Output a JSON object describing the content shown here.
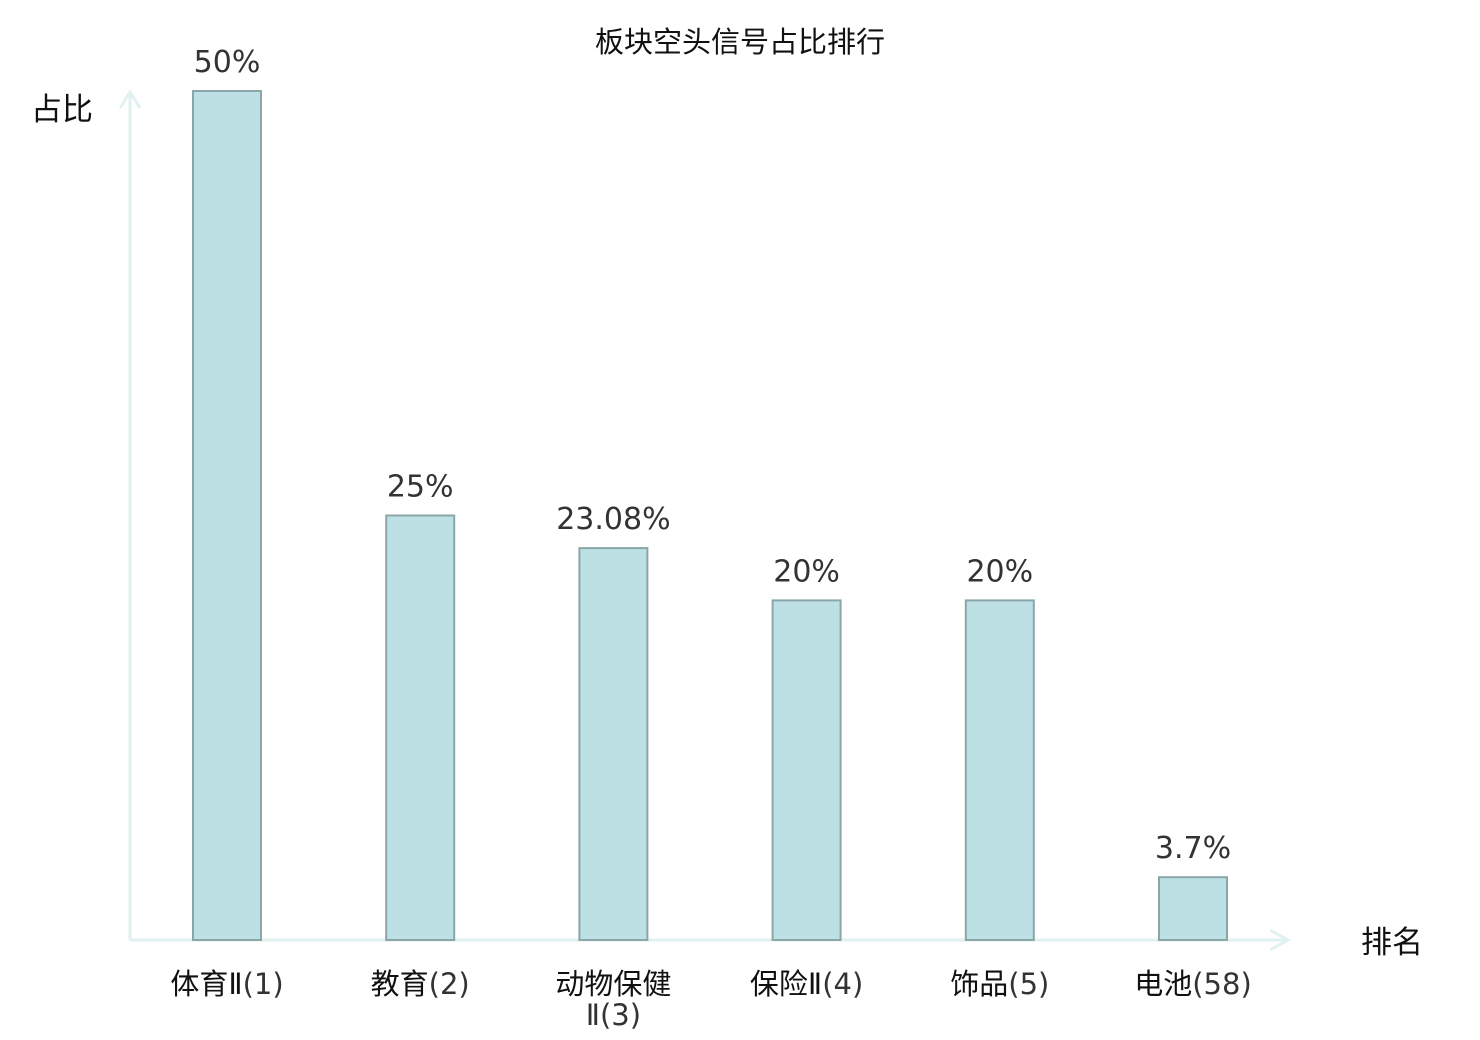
{
  "chart_data": {
    "type": "bar",
    "title": "板块空头信号占比排行",
    "xlabel": "排名",
    "ylabel": "占比",
    "ylim": [
      0,
      50
    ],
    "grid": false,
    "legend": "none",
    "categories": [
      {
        "name": "体育Ⅱ",
        "rank": "(1)",
        "wrap": false,
        "highlight": false
      },
      {
        "name": "教育",
        "rank": "(2)",
        "wrap": false,
        "highlight": false
      },
      {
        "name": "动物保健",
        "rank": "Ⅱ(3)",
        "wrap": true,
        "highlight": false
      },
      {
        "name": "保险Ⅱ",
        "rank": "(4)",
        "wrap": false,
        "highlight": false
      },
      {
        "name": "饰品",
        "rank": "(5)",
        "wrap": false,
        "highlight": false
      },
      {
        "name": "电池",
        "rank": "(58)",
        "wrap": false,
        "highlight": true
      }
    ],
    "values": [
      50,
      25,
      23.08,
      20,
      20,
      3.7
    ],
    "value_labels": [
      "50%",
      "25%",
      "23.08%",
      "20%",
      "20%",
      "3.7%"
    ],
    "colors": {
      "bar_fill": "#bce0e3",
      "bar_stroke": "#8aa6a8",
      "axis": "#e0f2ef",
      "highlight": "#dd0000",
      "label": "#333333"
    }
  }
}
